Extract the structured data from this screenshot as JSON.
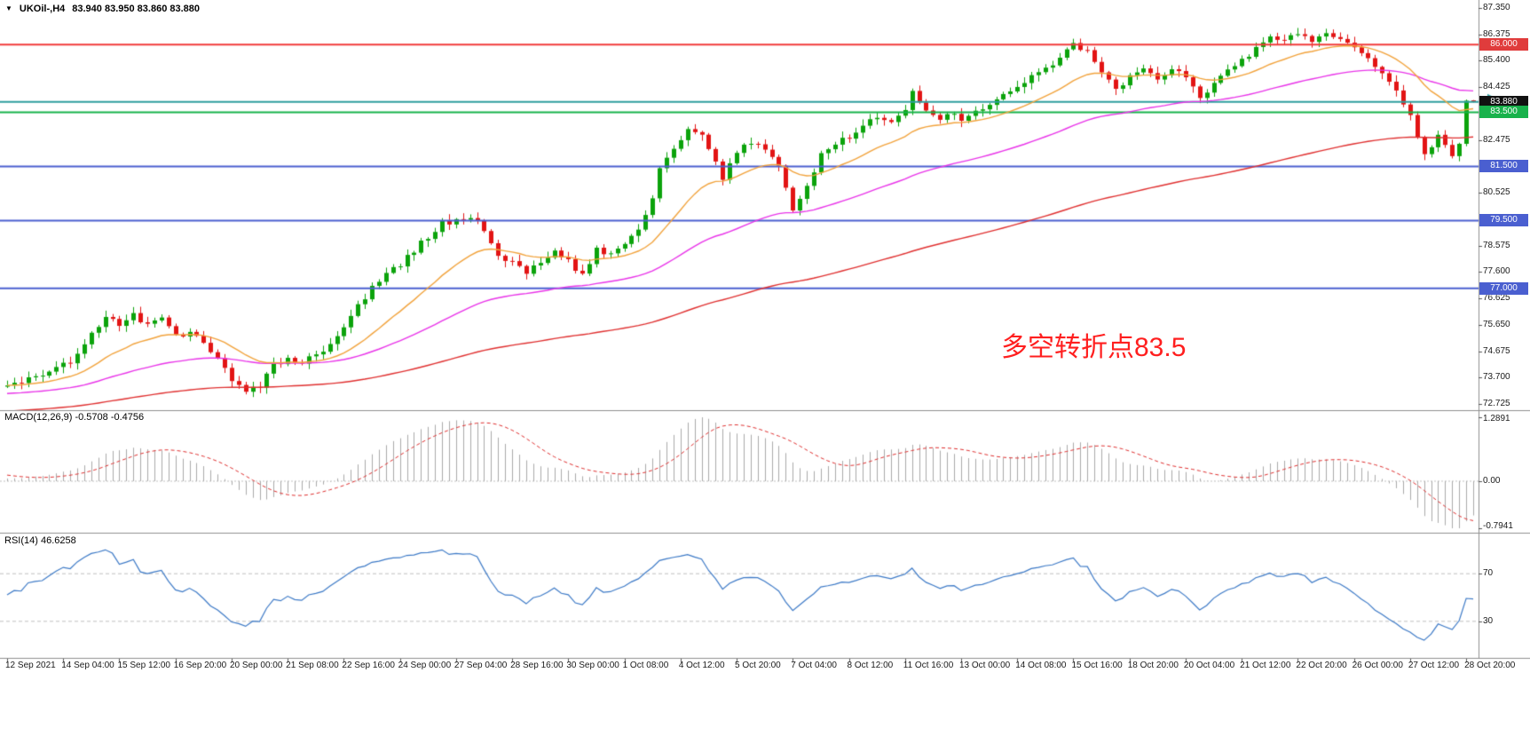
{
  "header": {
    "collapse_icon": "▼",
    "symbol": "UKOil-,H4",
    "ohlc": "83.940 83.950 83.860 83.880"
  },
  "main_chart": {
    "annotation": {
      "text": "多空转折点83.5",
      "color": "#ff1f1f"
    },
    "price_ticks": [
      {
        "v": 87.35,
        "label": "87.350"
      },
      {
        "v": 86.375,
        "label": "86.375"
      },
      {
        "v": 85.4,
        "label": "85.400"
      },
      {
        "v": 84.425,
        "label": "84.425"
      },
      {
        "v": 82.475,
        "label": "82.475"
      },
      {
        "v": 80.525,
        "label": "80.525"
      },
      {
        "v": 78.575,
        "label": "78.575"
      },
      {
        "v": 77.6,
        "label": "77.600"
      },
      {
        "v": 76.625,
        "label": "76.625"
      },
      {
        "v": 75.65,
        "label": "75.650"
      },
      {
        "v": 74.675,
        "label": "74.675"
      },
      {
        "v": 73.7,
        "label": "73.700"
      },
      {
        "v": 72.725,
        "label": "72.725"
      }
    ],
    "badges": [
      {
        "v": 86.0,
        "label": "86.000",
        "bg": "#e03c3c"
      },
      {
        "v": 83.88,
        "label": "83.880",
        "bg": "#111111"
      },
      {
        "v": 83.5,
        "label": "83.500",
        "bg": "#18b24b"
      },
      {
        "v": 81.5,
        "label": "81.500",
        "bg": "#4a5fd0"
      },
      {
        "v": 79.5,
        "label": "79.500",
        "bg": "#4a5fd0"
      },
      {
        "v": 77.0,
        "label": "77.000",
        "bg": "#4a5fd0"
      }
    ],
    "hlines": [
      {
        "v": 86.0,
        "color": "#f23b3b",
        "w": 2
      },
      {
        "v": 83.88,
        "color": "#2e9e9e",
        "w": 2
      },
      {
        "v": 83.5,
        "color": "#17b34a",
        "w": 2
      },
      {
        "v": 81.5,
        "color": "#4a5fd0",
        "w": 2
      },
      {
        "v": 79.5,
        "color": "#4a5fd0",
        "w": 2
      },
      {
        "v": 77.0,
        "color": "#4a5fd0",
        "w": 2
      }
    ]
  },
  "macd_panel": {
    "label": "MACD(12,26,9) -0.5708 -0.4756",
    "axis_labels": {
      "max": "1.2891",
      "zero": "0.00",
      "min": "-0.7941"
    }
  },
  "rsi_panel": {
    "label": "RSI(14) 46.6258",
    "levels": [
      {
        "v": 70,
        "label": "70"
      },
      {
        "v": 30,
        "label": "30"
      }
    ]
  },
  "colors": {
    "up_candle": "#0ba30b",
    "down_candle": "#e21414",
    "ma_fast": "#f2a33c",
    "ma_mid": "#e934e9",
    "ma_slow": "#e03030",
    "macd_histogram": "#aaaaaa",
    "macd_signal": "#e03030",
    "rsi_line": "#3d7ac7",
    "level_dashed": "#c0c0c0",
    "separator": "#909090",
    "axis_text": "#1a1a1a"
  },
  "chart_data": {
    "type": "candlestick",
    "symbol": "UKOil-",
    "timeframe": "H4",
    "title": "UKOil-,H4",
    "bars_visible": 210,
    "price_axis_range": [
      72.725,
      87.35
    ],
    "current_bar": {
      "open": 83.94,
      "high": 83.95,
      "low": 83.86,
      "close": 83.88
    },
    "close_waypoints": [
      [
        0,
        73.5
      ],
      [
        3,
        73.6
      ],
      [
        6,
        73.9
      ],
      [
        9,
        74.3
      ],
      [
        12,
        75.3
      ],
      [
        14,
        76.0
      ],
      [
        16,
        75.7
      ],
      [
        18,
        76.0
      ],
      [
        20,
        75.6
      ],
      [
        22,
        75.9
      ],
      [
        24,
        75.2
      ],
      [
        26,
        75.4
      ],
      [
        28,
        74.9
      ],
      [
        30,
        74.4
      ],
      [
        32,
        73.6
      ],
      [
        34,
        73.2
      ],
      [
        36,
        73.4
      ],
      [
        38,
        74.2
      ],
      [
        40,
        74.4
      ],
      [
        42,
        74.2
      ],
      [
        44,
        74.6
      ],
      [
        46,
        74.9
      ],
      [
        48,
        75.6
      ],
      [
        50,
        76.4
      ],
      [
        52,
        77.0
      ],
      [
        54,
        77.5
      ],
      [
        56,
        77.9
      ],
      [
        58,
        78.4
      ],
      [
        60,
        78.9
      ],
      [
        62,
        79.4
      ],
      [
        64,
        79.5
      ],
      [
        66,
        79.7
      ],
      [
        68,
        79.1
      ],
      [
        70,
        78.2
      ],
      [
        72,
        77.9
      ],
      [
        74,
        77.6
      ],
      [
        76,
        77.9
      ],
      [
        78,
        78.4
      ],
      [
        80,
        78.0
      ],
      [
        82,
        77.5
      ],
      [
        84,
        78.5
      ],
      [
        86,
        78.2
      ],
      [
        88,
        78.7
      ],
      [
        90,
        79.2
      ],
      [
        92,
        80.3
      ],
      [
        93,
        81.5
      ],
      [
        95,
        82.2
      ],
      [
        97,
        82.9
      ],
      [
        99,
        82.6
      ],
      [
        101,
        81.6
      ],
      [
        102,
        81.0
      ],
      [
        104,
        82.1
      ],
      [
        106,
        82.4
      ],
      [
        108,
        82.2
      ],
      [
        110,
        81.5
      ],
      [
        112,
        79.9
      ],
      [
        114,
        80.8
      ],
      [
        116,
        81.9
      ],
      [
        118,
        82.3
      ],
      [
        120,
        82.6
      ],
      [
        122,
        83.0
      ],
      [
        124,
        83.4
      ],
      [
        126,
        83.1
      ],
      [
        128,
        83.6
      ],
      [
        129,
        84.3
      ],
      [
        131,
        83.6
      ],
      [
        133,
        83.2
      ],
      [
        135,
        83.5
      ],
      [
        136,
        83.2
      ],
      [
        138,
        83.6
      ],
      [
        140,
        83.8
      ],
      [
        142,
        84.1
      ],
      [
        144,
        84.4
      ],
      [
        146,
        84.8
      ],
      [
        148,
        85.1
      ],
      [
        150,
        85.5
      ],
      [
        152,
        86.0
      ],
      [
        154,
        85.8
      ],
      [
        156,
        85.0
      ],
      [
        158,
        84.4
      ],
      [
        160,
        84.8
      ],
      [
        162,
        85.1
      ],
      [
        164,
        84.7
      ],
      [
        166,
        85.0
      ],
      [
        168,
        84.9
      ],
      [
        170,
        84.0
      ],
      [
        172,
        84.6
      ],
      [
        174,
        85.1
      ],
      [
        176,
        85.4
      ],
      [
        178,
        85.9
      ],
      [
        180,
        86.3
      ],
      [
        182,
        86.1
      ],
      [
        184,
        86.4
      ],
      [
        186,
        86.1
      ],
      [
        188,
        86.5
      ],
      [
        190,
        86.2
      ],
      [
        192,
        86.0
      ],
      [
        194,
        85.5
      ],
      [
        196,
        84.9
      ],
      [
        198,
        84.2
      ],
      [
        200,
        83.3
      ],
      [
        201,
        82.6
      ],
      [
        202,
        81.9
      ],
      [
        203,
        82.2
      ],
      [
        204,
        82.6
      ],
      [
        205,
        82.2
      ],
      [
        206,
        81.9
      ],
      [
        207,
        82.4
      ],
      [
        208,
        83.9
      ],
      [
        209,
        83.88
      ]
    ],
    "moving_averages": [
      {
        "name": "fast-ma",
        "type": "EMA",
        "period": 18,
        "color": "#f2a33c"
      },
      {
        "name": "mid-ma",
        "type": "EMA",
        "period": 55,
        "color": "#e934e9"
      },
      {
        "name": "slow-ma",
        "type": "EMA",
        "period": 144,
        "color": "#e03030"
      }
    ],
    "horizontal_levels": [
      86.0,
      83.88,
      83.5,
      81.5,
      79.5,
      77.0
    ],
    "macd": {
      "fast": 12,
      "slow": 26,
      "signal": 9,
      "current_macd": -0.5708,
      "current_signal": -0.4756,
      "panel_range": [
        -0.7941,
        1.2891
      ]
    },
    "rsi": {
      "period": 14,
      "current": 46.6258,
      "levels": [
        70,
        30
      ],
      "panel_range": [
        0,
        100
      ]
    },
    "x_axis_labels": [
      "12 Sep 2021",
      "14 Sep 04:00",
      "15 Sep 12:00",
      "16 Sep 20:00",
      "20 Sep 00:00",
      "21 Sep 08:00",
      "22 Sep 16:00",
      "24 Sep 00:00",
      "27 Sep 04:00",
      "28 Sep 16:00",
      "30 Sep 00:00",
      "1 Oct 08:00",
      "4 Oct 12:00",
      "5 Oct 20:00",
      "7 Oct 04:00",
      "8 Oct 12:00",
      "11 Oct 16:00",
      "13 Oct 00:00",
      "14 Oct 08:00",
      "15 Oct 16:00",
      "18 Oct 20:00",
      "20 Oct 04:00",
      "21 Oct 12:00",
      "22 Oct 20:00",
      "26 Oct 00:00",
      "27 Oct 12:00",
      "28 Oct 20:00"
    ]
  }
}
